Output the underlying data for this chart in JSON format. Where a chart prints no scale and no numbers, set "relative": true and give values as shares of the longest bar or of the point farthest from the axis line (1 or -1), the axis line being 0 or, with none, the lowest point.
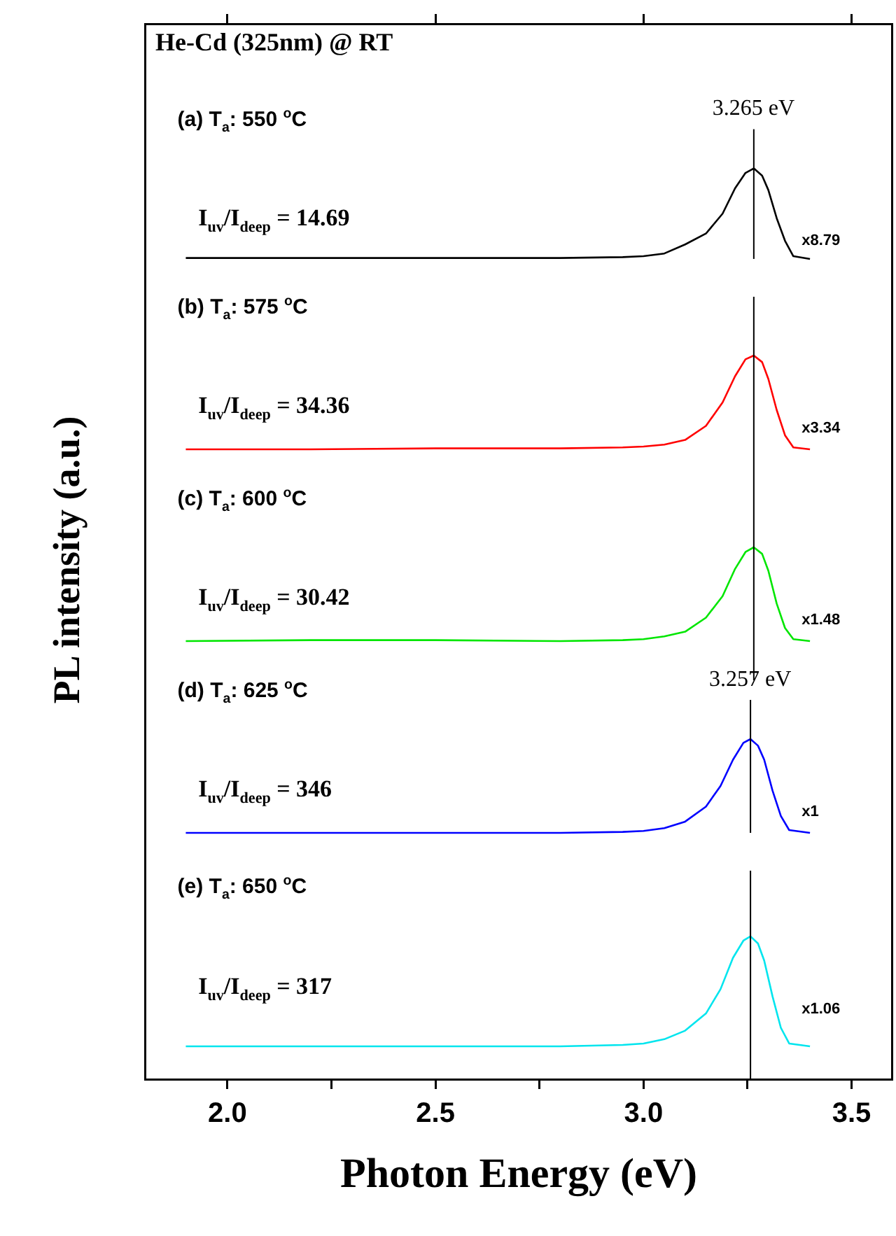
{
  "chart_data": [
    {
      "type": "line",
      "title": "He-Cd (325nm) @ RT",
      "relative": true,
      "xlim": [
        1.8,
        3.6
      ],
      "xticks": [
        {
          "value": 2.0,
          "label": null
        },
        {
          "value": 2.5,
          "label": null
        },
        {
          "value": 3.0,
          "label": null
        },
        {
          "value": 3.5,
          "label": null
        }
      ],
      "tick_labels": false,
      "x": [
        1.9,
        2.2,
        2.5,
        2.8,
        2.95,
        3.0,
        3.05,
        3.1,
        3.15,
        3.19,
        3.22,
        3.245,
        3.265,
        3.285,
        3.3,
        3.32,
        3.34,
        3.36,
        3.4
      ],
      "series": [
        {
          "color": "#000000",
          "values": [
            0.01,
            0.01,
            0.01,
            0.01,
            0.02,
            0.03,
            0.06,
            0.16,
            0.28,
            0.5,
            0.78,
            0.95,
            1,
            0.92,
            0.76,
            0.45,
            0.2,
            0.03,
            0
          ]
        }
      ],
      "annotations": [
        "(a) T$_{a}$: 550 $^{o}$C",
        "I$_{uv}$/I$_{deep}$ = 14.69",
        "x8.79"
      ],
      "ref_lines": [
        {
          "axis": "x",
          "value": 3.265,
          "label": "3.265 eV"
        }
      ]
    },
    {
      "type": "line",
      "relative": true,
      "xlim": [
        1.8,
        3.6
      ],
      "xticks": [
        {
          "value": 2.0,
          "label": null
        },
        {
          "value": 3.5,
          "label": null
        }
      ],
      "tick_labels": false,
      "x": [
        1.9,
        2.2,
        2.5,
        2.8,
        2.95,
        3.0,
        3.05,
        3.1,
        3.15,
        3.19,
        3.22,
        3.245,
        3.265,
        3.285,
        3.3,
        3.32,
        3.34,
        3.36,
        3.4
      ],
      "series": [
        {
          "color": "#ff0000",
          "values": [
            0,
            0,
            0.01,
            0.01,
            0.02,
            0.03,
            0.05,
            0.1,
            0.25,
            0.5,
            0.78,
            0.96,
            1,
            0.93,
            0.75,
            0.42,
            0.15,
            0.02,
            0
          ]
        }
      ],
      "annotations": [
        "(b) T$_{a}$: 575 $^{o}$C",
        "I$_{uv}$/I$_{deep}$ = 34.36",
        "x3.34"
      ],
      "ref_lines": [
        {
          "axis": "x",
          "value": 3.265
        }
      ]
    },
    {
      "type": "line",
      "relative": true,
      "ylabel": "PL intensity (a.u.)",
      "xlim": [
        1.8,
        3.6
      ],
      "xticks": [
        {
          "value": 2.0,
          "label": null
        },
        {
          "value": 3.5,
          "label": null
        }
      ],
      "tick_labels": false,
      "x": [
        1.9,
        2.2,
        2.5,
        2.8,
        2.95,
        3.0,
        3.05,
        3.1,
        3.15,
        3.19,
        3.22,
        3.245,
        3.265,
        3.285,
        3.3,
        3.32,
        3.34,
        3.36,
        3.4
      ],
      "series": [
        {
          "color": "#00e600",
          "values": [
            0,
            0.01,
            0.01,
            0,
            0.01,
            0.02,
            0.05,
            0.1,
            0.25,
            0.48,
            0.77,
            0.95,
            1,
            0.93,
            0.75,
            0.4,
            0.14,
            0.02,
            0
          ]
        }
      ],
      "annotations": [
        "(c) T$_{a}$: 600 $^{o}$C",
        "I$_{uv}$/I$_{deep}$ = 30.42",
        "x1.48"
      ],
      "ref_lines": [
        {
          "axis": "x",
          "value": 3.265
        }
      ]
    },
    {
      "type": "line",
      "relative": true,
      "xlim": [
        1.8,
        3.6
      ],
      "xticks": [
        {
          "value": 2.0,
          "label": null
        },
        {
          "value": 3.5,
          "label": null
        }
      ],
      "tick_labels": false,
      "x": [
        1.9,
        2.2,
        2.5,
        2.8,
        2.95,
        3.0,
        3.05,
        3.1,
        3.15,
        3.185,
        3.215,
        3.24,
        3.257,
        3.275,
        3.29,
        3.31,
        3.33,
        3.35,
        3.4
      ],
      "series": [
        {
          "color": "#0000ff",
          "values": [
            0,
            0,
            0,
            0,
            0.01,
            0.02,
            0.05,
            0.12,
            0.28,
            0.5,
            0.78,
            0.96,
            1,
            0.93,
            0.78,
            0.45,
            0.18,
            0.03,
            0
          ]
        }
      ],
      "annotations": [
        "(d) T$_{a}$: 625 $^{o}$C",
        "I$_{uv}$/I$_{deep}$ = 346",
        "x1"
      ],
      "ref_lines": [
        {
          "axis": "x",
          "value": 3.257,
          "label": "3.257 eV"
        }
      ]
    },
    {
      "type": "line",
      "relative": true,
      "xlabel": "Photon Energy (eV)",
      "xlim": [
        1.8,
        3.6
      ],
      "xticks": [
        {
          "value": 2.0,
          "label": "2.0"
        },
        {
          "value": 2.25,
          "label": null
        },
        {
          "value": 2.5,
          "label": "2.5"
        },
        {
          "value": 2.75,
          "label": null
        },
        {
          "value": 3.0,
          "label": "3.0"
        },
        {
          "value": 3.25,
          "label": null
        },
        {
          "value": 3.5,
          "label": "3.5"
        }
      ],
      "tick_labels": "x",
      "x": [
        1.9,
        2.2,
        2.5,
        2.8,
        2.95,
        3.0,
        3.05,
        3.1,
        3.15,
        3.185,
        3.215,
        3.24,
        3.257,
        3.275,
        3.29,
        3.31,
        3.33,
        3.35,
        3.4
      ],
      "series": [
        {
          "color": "#00e5ee",
          "values": [
            0.23,
            0.23,
            0.23,
            0.23,
            0.24,
            0.25,
            0.28,
            0.34,
            0.46,
            0.63,
            0.85,
            0.97,
            1,
            0.95,
            0.83,
            0.58,
            0.36,
            0.25,
            0.23
          ]
        }
      ],
      "annotations": [
        "(e) T$_{a}$: 650 $^{o}$C",
        "I$_{uv}$/I$_{deep}$ = 317",
        "x1.06"
      ],
      "ref_lines": [
        {
          "axis": "x",
          "value": 3.257
        }
      ]
    }
  ]
}
